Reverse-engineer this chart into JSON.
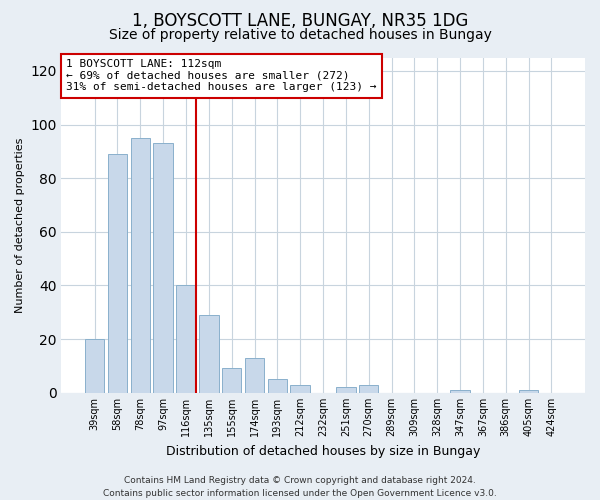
{
  "title": "1, BOYSCOTT LANE, BUNGAY, NR35 1DG",
  "subtitle": "Size of property relative to detached houses in Bungay",
  "xlabel": "Distribution of detached houses by size in Bungay",
  "ylabel": "Number of detached properties",
  "categories": [
    "39sqm",
    "58sqm",
    "78sqm",
    "97sqm",
    "116sqm",
    "135sqm",
    "155sqm",
    "174sqm",
    "193sqm",
    "212sqm",
    "232sqm",
    "251sqm",
    "270sqm",
    "289sqm",
    "309sqm",
    "328sqm",
    "347sqm",
    "367sqm",
    "386sqm",
    "405sqm",
    "424sqm"
  ],
  "values": [
    20,
    89,
    95,
    93,
    40,
    29,
    9,
    13,
    5,
    3,
    0,
    2,
    3,
    0,
    0,
    0,
    1,
    0,
    0,
    1,
    0
  ],
  "bar_color": "#c8d8ea",
  "bar_edge_color": "#8ab0cc",
  "vline_bar_index": 4,
  "vline_color": "#cc0000",
  "annotation_line1": "1 BOYSCOTT LANE: 112sqm",
  "annotation_line2": "← 69% of detached houses are smaller (272)",
  "annotation_line3": "31% of semi-detached houses are larger (123) →",
  "ylim": [
    0,
    125
  ],
  "yticks": [
    0,
    20,
    40,
    60,
    80,
    100,
    120
  ],
  "footer_line1": "Contains HM Land Registry data © Crown copyright and database right 2024.",
  "footer_line2": "Contains public sector information licensed under the Open Government Licence v3.0.",
  "background_color": "#e8eef4",
  "plot_background_color": "#ffffff",
  "title_fontsize": 12,
  "subtitle_fontsize": 10,
  "annotation_fontsize": 8,
  "footer_fontsize": 6.5,
  "ylabel_fontsize": 8,
  "xlabel_fontsize": 9,
  "grid_color": "#c8d4de"
}
